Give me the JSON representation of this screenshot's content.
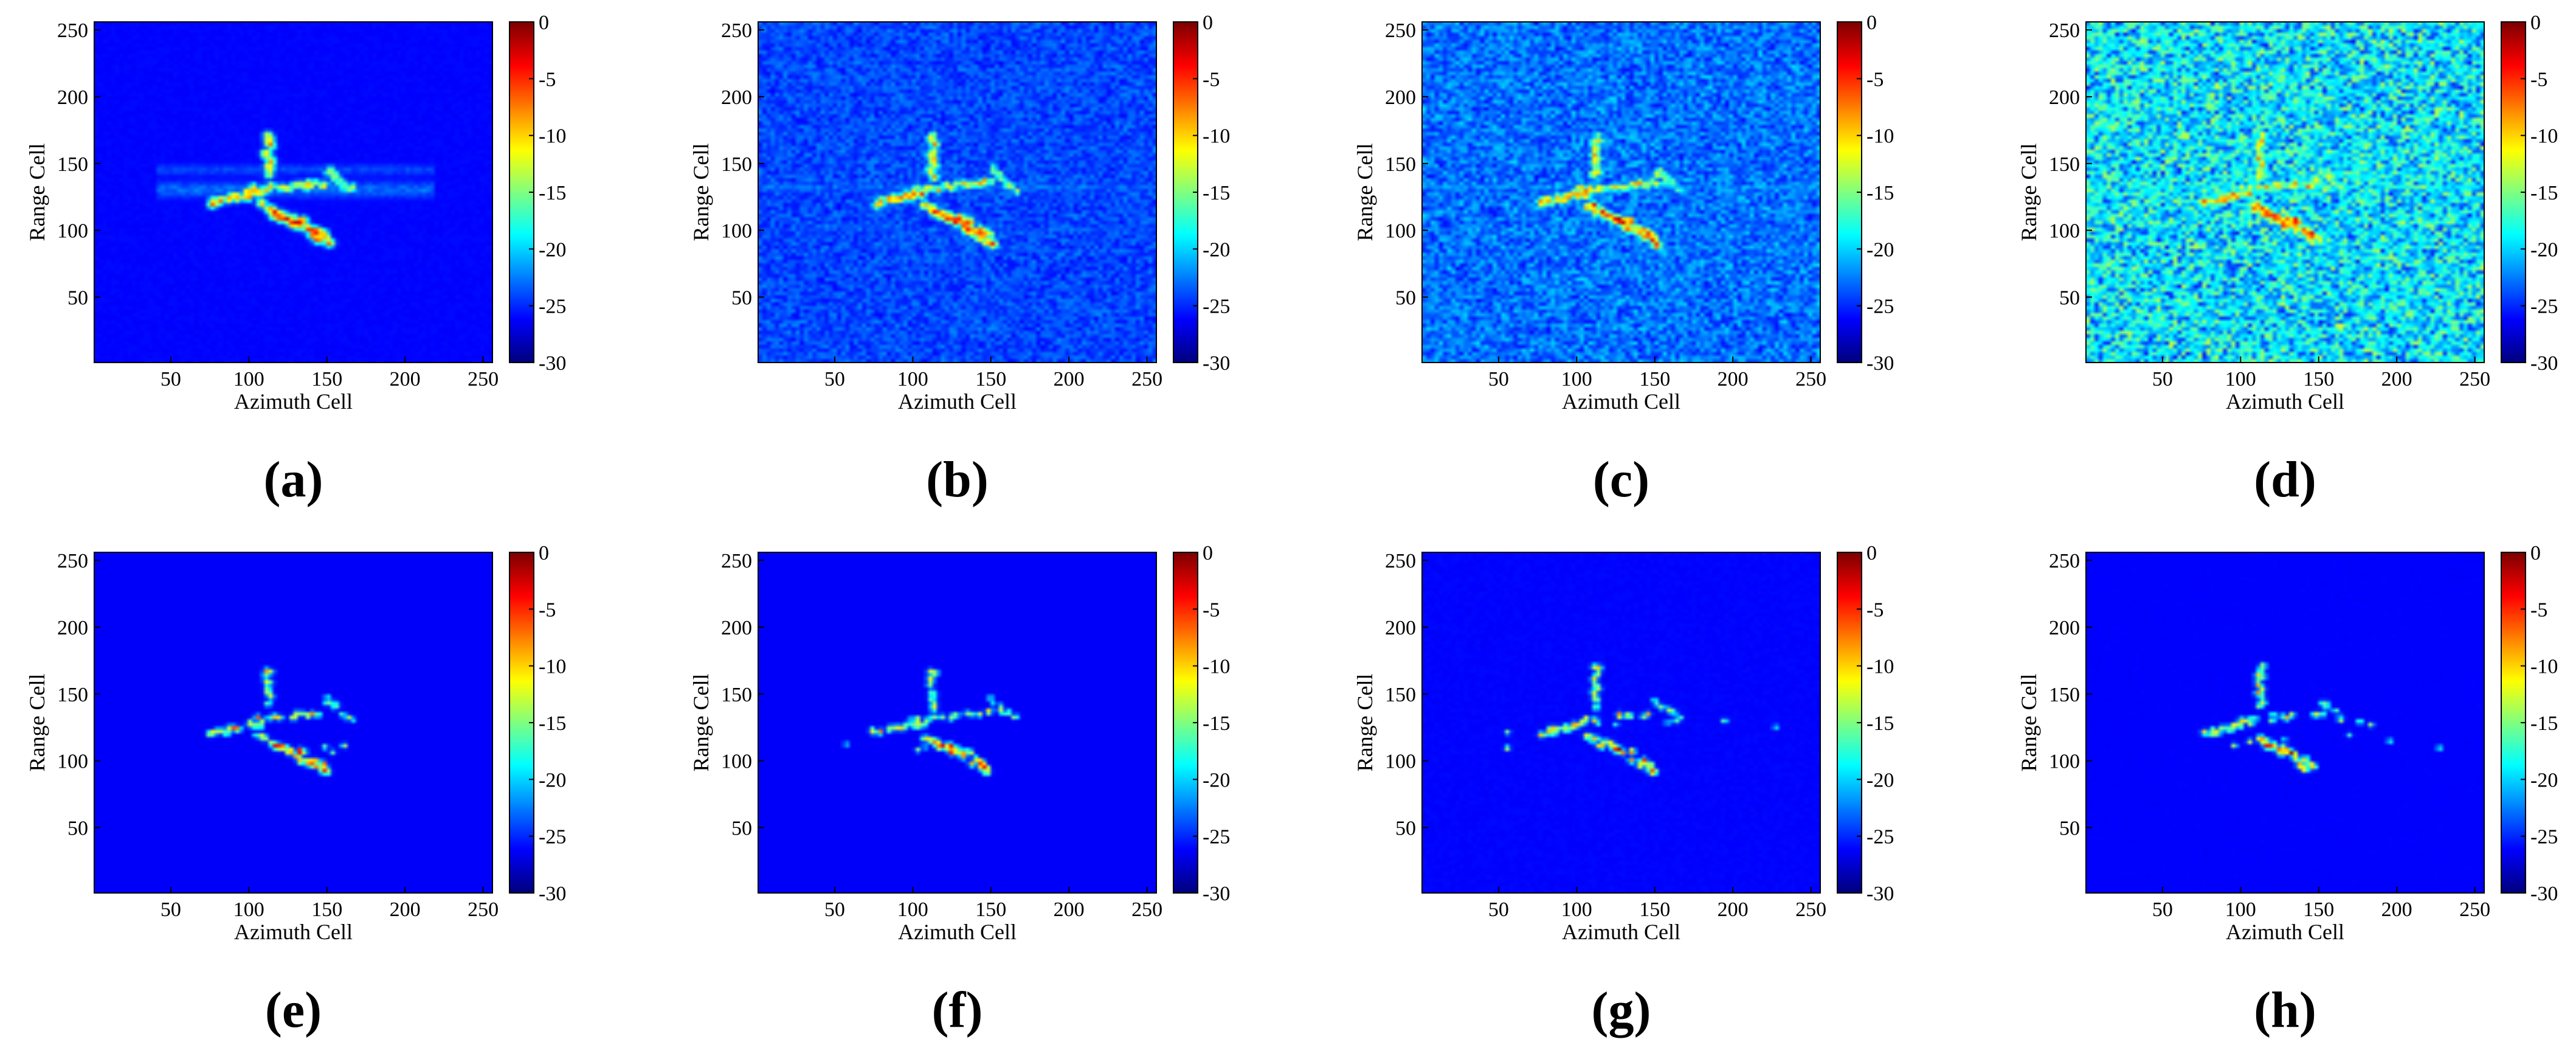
{
  "chart_data": {
    "type": "heatmap",
    "colormap": "jet",
    "xlabel": "Azimuth Cell",
    "ylabel": "Range Cell",
    "xlim": [
      1,
      256
    ],
    "ylim": [
      1,
      256
    ],
    "x_ticks": [
      "50",
      "100",
      "150",
      "200",
      "250"
    ],
    "y_ticks": [
      "50",
      "100",
      "150",
      "200",
      "250"
    ],
    "colorbar": {
      "range": [
        -30,
        0
      ],
      "ticks": [
        "0",
        "-5",
        "-10",
        "-15",
        "-20",
        "-25",
        "-30"
      ]
    },
    "panels": [
      {
        "label": "(a)",
        "clutter": 0.02,
        "sidelobe": 0.55,
        "noise_stripes": 0.0,
        "noise": 0.0
      },
      {
        "label": "(b)",
        "clutter": 0.14,
        "sidelobe": 0.2,
        "noise_stripes": 0.35,
        "noise": 0.05
      },
      {
        "label": "(c)",
        "clutter": 0.2,
        "sidelobe": 0.15,
        "noise_stripes": 0.45,
        "noise": 0.1
      },
      {
        "label": "(d)",
        "clutter": 0.32,
        "sidelobe": 0.1,
        "noise_stripes": 0.6,
        "noise": 0.3
      },
      {
        "label": "(e)",
        "clutter": 0.0,
        "sidelobe": 0.0,
        "noise_stripes": 0.0,
        "noise": 0.0,
        "sparse": true
      },
      {
        "label": "(f)",
        "clutter": 0.0,
        "sidelobe": 0.0,
        "noise_stripes": 0.0,
        "noise": 0.0,
        "sparse": true
      },
      {
        "label": "(g)",
        "clutter": 0.0,
        "sidelobe": 0.0,
        "noise_stripes": 0.0,
        "noise": 0.02,
        "sparse": true
      },
      {
        "label": "(h)",
        "clutter": 0.0,
        "sidelobe": 0.0,
        "noise_stripes": 0.0,
        "noise": 0.01,
        "sparse": true
      }
    ]
  }
}
